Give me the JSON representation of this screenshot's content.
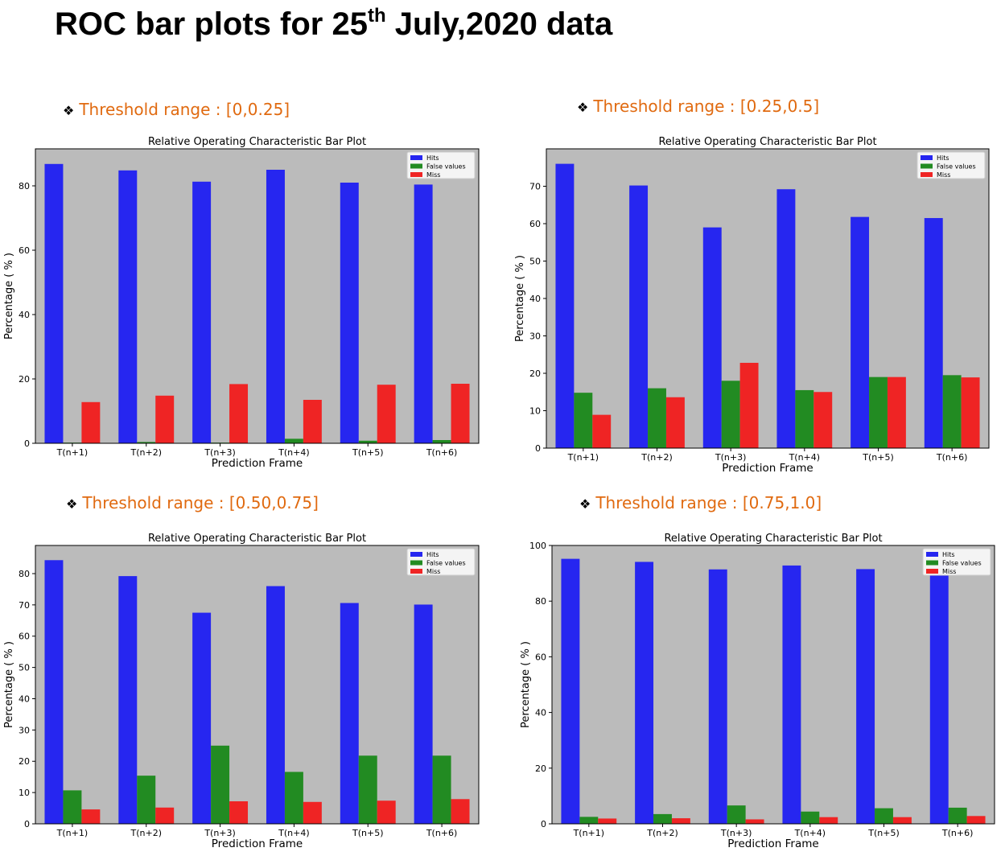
{
  "page": {
    "title_main": "ROC bar plots for 25",
    "title_sup": "th",
    "title_rest": " July,2020 data"
  },
  "colors": {
    "hits": "#2626f0",
    "false_values": "#228b22",
    "miss": "#ef2424",
    "axes_bg": "#bbbbbb",
    "heading": "#e06a10"
  },
  "bullet_icon": "diamond-bullet-icon",
  "chart_data": [
    {
      "type": "bar",
      "heading": "Threshold range : [0,0.25]",
      "title": "Relative Operating Characteristic Bar Plot",
      "xlabel": "Prediction Frame",
      "ylabel": "Percentage ( % )",
      "categories": [
        "T(n+1)",
        "T(n+2)",
        "T(n+3)",
        "T(n+4)",
        "T(n+5)",
        "T(n+6)"
      ],
      "ylim": [
        0,
        91.5
      ],
      "yticks": [
        0,
        20,
        40,
        60,
        80
      ],
      "legend": "top-right",
      "series": [
        {
          "name": "Hits",
          "values": [
            86.8,
            84.8,
            81.3,
            85.0,
            81.0,
            80.4
          ]
        },
        {
          "name": "False values",
          "values": [
            0.2,
            0.4,
            0.2,
            1.4,
            0.8,
            1.0
          ]
        },
        {
          "name": "Miss",
          "values": [
            12.8,
            14.8,
            18.4,
            13.5,
            18.2,
            18.5
          ]
        }
      ]
    },
    {
      "type": "bar",
      "heading": "Threshold range : [0.25,0.5]",
      "title": "Relative Operating Characteristic Bar Plot",
      "xlabel": "Prediction Frame",
      "ylabel": "Percentage ( % )",
      "categories": [
        "T(n+1)",
        "T(n+2)",
        "T(n+3)",
        "T(n+4)",
        "T(n+5)",
        "T(n+6)"
      ],
      "ylim": [
        0,
        80
      ],
      "yticks": [
        0,
        10,
        20,
        30,
        40,
        50,
        60,
        70
      ],
      "legend": "top-right",
      "series": [
        {
          "name": "Hits",
          "values": [
            76.0,
            70.2,
            59.0,
            69.2,
            61.8,
            61.5
          ]
        },
        {
          "name": "False values",
          "values": [
            14.8,
            16.0,
            18.0,
            15.5,
            19.0,
            19.5
          ]
        },
        {
          "name": "Miss",
          "values": [
            8.9,
            13.6,
            22.8,
            15.0,
            19.0,
            18.9
          ]
        }
      ]
    },
    {
      "type": "bar",
      "heading": "Threshold range : [0.50,0.75]",
      "title": "Relative Operating Characteristic Bar Plot",
      "xlabel": "Prediction Frame",
      "ylabel": "Percentage ( % )",
      "categories": [
        "T(n+1)",
        "T(n+2)",
        "T(n+3)",
        "T(n+4)",
        "T(n+5)",
        "T(n+6)"
      ],
      "ylim": [
        0,
        89
      ],
      "yticks": [
        0,
        10,
        20,
        30,
        40,
        50,
        60,
        70,
        80
      ],
      "legend": "top-right",
      "series": [
        {
          "name": "Hits",
          "values": [
            84.3,
            79.2,
            67.5,
            76.0,
            70.6,
            70.1
          ]
        },
        {
          "name": "False values",
          "values": [
            10.7,
            15.4,
            25.0,
            16.6,
            21.8,
            21.8
          ]
        },
        {
          "name": "Miss",
          "values": [
            4.6,
            5.2,
            7.2,
            7.0,
            7.4,
            7.9
          ]
        }
      ]
    },
    {
      "type": "bar",
      "heading": "Threshold range : [0.75,1.0]",
      "title": "Relative Operating Characteristic Bar Plot",
      "xlabel": "Prediction Frame",
      "ylabel": "Percentage ( % )",
      "categories": [
        "T(n+1)",
        "T(n+2)",
        "T(n+3)",
        "T(n+4)",
        "T(n+5)",
        "T(n+6)"
      ],
      "ylim": [
        0,
        100
      ],
      "yticks": [
        0,
        20,
        40,
        60,
        80,
        100
      ],
      "legend": "top-right",
      "series": [
        {
          "name": "Hits",
          "values": [
            95.2,
            94.1,
            91.4,
            92.8,
            91.5,
            90.9
          ]
        },
        {
          "name": "False values",
          "values": [
            2.5,
            3.5,
            6.6,
            4.4,
            5.6,
            5.8
          ]
        },
        {
          "name": "Miss",
          "values": [
            1.9,
            2.0,
            1.6,
            2.4,
            2.4,
            2.8
          ]
        }
      ]
    }
  ]
}
